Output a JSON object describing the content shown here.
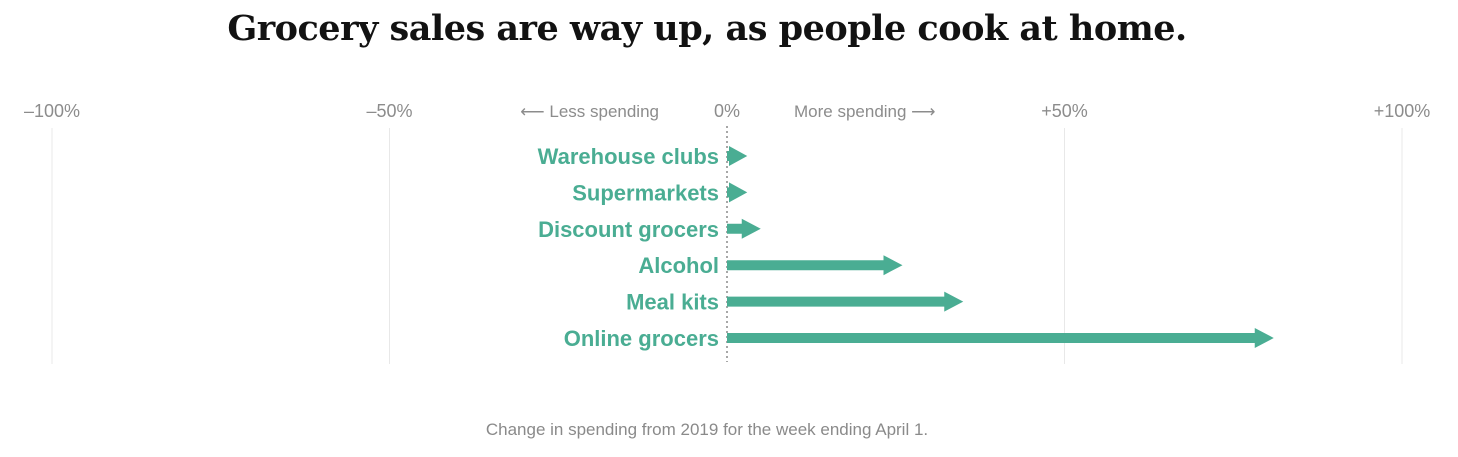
{
  "chart_data": {
    "type": "bar",
    "title": "Grocery sales are way up, as people cook at home.",
    "caption": "Change in spending from 2019 for the week ending April 1.",
    "categories": [
      "Warehouse clubs",
      "Supermarkets",
      "Discount grocers",
      "Alcohol",
      "Meal kits",
      "Online grocers"
    ],
    "values": [
      3,
      3,
      5,
      26,
      35,
      81
    ],
    "xlim": [
      -100,
      100
    ],
    "ticks": [
      {
        "value": -100,
        "label": "–100%"
      },
      {
        "value": -50,
        "label": "–50%"
      },
      {
        "value": 0,
        "label": "0%"
      },
      {
        "value": 50,
        "label": "+50%"
      },
      {
        "value": 100,
        "label": "+100%"
      }
    ],
    "direction_labels": {
      "less": "⟵ Less spending",
      "more": "More spending ⟶"
    },
    "bar_color": "#4aad93",
    "grid_color": "#e8e8e8",
    "zero_line_color": "#8a8a8a",
    "orientation": "horizontal",
    "grid": true
  }
}
